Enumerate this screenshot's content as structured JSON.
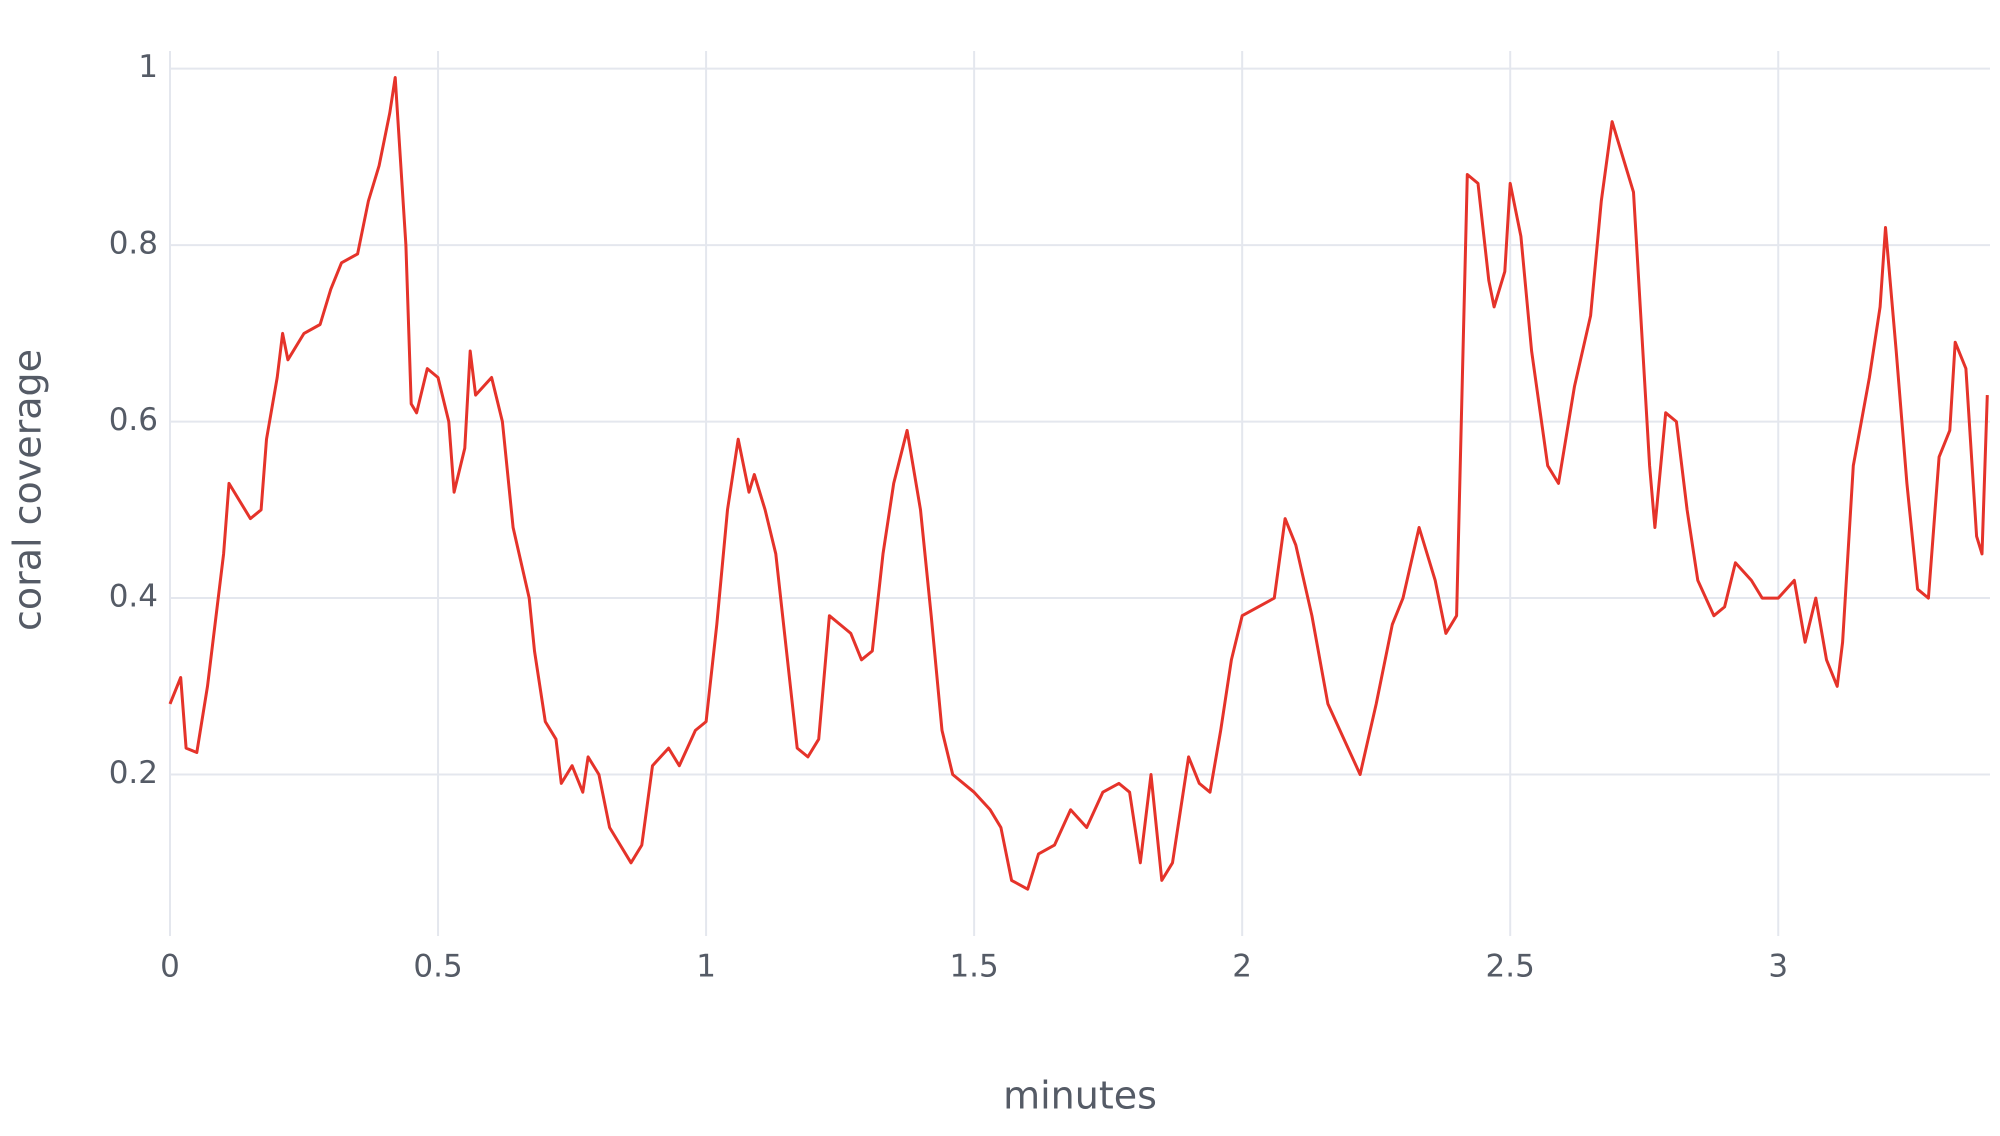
{
  "chart_data": {
    "type": "line",
    "xlabel": "minutes",
    "ylabel": "coral coverage",
    "xlim": [
      0,
      3.395
    ],
    "ylim": [
      0.017,
      1.02
    ],
    "xticks": [
      0,
      0.5,
      1,
      1.5,
      2,
      2.5,
      3
    ],
    "yticks": [
      0.2,
      0.4,
      0.6,
      0.8,
      1
    ],
    "grid": true,
    "series": [
      {
        "color": "#e5332a",
        "x": [
          0,
          0.02,
          0.03,
          0.05,
          0.07,
          0.1,
          0.11,
          0.13,
          0.15,
          0.17,
          0.18,
          0.2,
          0.21,
          0.22,
          0.25,
          0.28,
          0.3,
          0.32,
          0.35,
          0.37,
          0.39,
          0.41,
          0.42,
          0.44,
          0.45,
          0.46,
          0.48,
          0.5,
          0.52,
          0.53,
          0.55,
          0.56,
          0.57,
          0.6,
          0.62,
          0.64,
          0.67,
          0.68,
          0.7,
          0.72,
          0.73,
          0.75,
          0.77,
          0.78,
          0.8,
          0.82,
          0.84,
          0.86,
          0.88,
          0.9,
          0.93,
          0.95,
          0.98,
          1.0,
          1.02,
          1.04,
          1.06,
          1.08,
          1.09,
          1.11,
          1.13,
          1.15,
          1.17,
          1.19,
          1.21,
          1.23,
          1.25,
          1.27,
          1.29,
          1.31,
          1.33,
          1.35,
          1.375,
          1.4,
          1.42,
          1.44,
          1.46,
          1.5,
          1.53,
          1.55,
          1.57,
          1.6,
          1.62,
          1.65,
          1.68,
          1.71,
          1.74,
          1.77,
          1.79,
          1.81,
          1.83,
          1.85,
          1.87,
          1.9,
          1.92,
          1.94,
          1.96,
          1.98,
          2.0,
          2.03,
          2.06,
          2.08,
          2.1,
          2.13,
          2.16,
          2.19,
          2.22,
          2.25,
          2.28,
          2.3,
          2.33,
          2.36,
          2.38,
          2.4,
          2.42,
          2.44,
          2.46,
          2.47,
          2.49,
          2.5,
          2.52,
          2.54,
          2.57,
          2.59,
          2.62,
          2.65,
          2.67,
          2.69,
          2.71,
          2.73,
          2.76,
          2.77,
          2.79,
          2.81,
          2.83,
          2.85,
          2.88,
          2.9,
          2.92,
          2.95,
          2.97,
          3.0,
          3.03,
          3.05,
          3.07,
          3.09,
          3.11,
          3.12,
          3.14,
          3.17,
          3.19,
          3.2,
          3.22,
          3.24,
          3.26,
          3.28,
          3.3,
          3.32,
          3.33,
          3.35,
          3.37,
          3.38,
          3.39
        ],
        "values": [
          0.28,
          0.31,
          0.23,
          0.225,
          0.3,
          0.45,
          0.53,
          0.51,
          0.49,
          0.5,
          0.58,
          0.65,
          0.7,
          0.67,
          0.7,
          0.71,
          0.75,
          0.78,
          0.79,
          0.85,
          0.89,
          0.95,
          0.99,
          0.8,
          0.62,
          0.61,
          0.66,
          0.65,
          0.6,
          0.52,
          0.57,
          0.68,
          0.63,
          0.65,
          0.6,
          0.48,
          0.4,
          0.34,
          0.26,
          0.24,
          0.19,
          0.21,
          0.18,
          0.22,
          0.2,
          0.14,
          0.12,
          0.1,
          0.12,
          0.21,
          0.23,
          0.21,
          0.25,
          0.26,
          0.37,
          0.5,
          0.58,
          0.52,
          0.54,
          0.5,
          0.45,
          0.34,
          0.23,
          0.22,
          0.24,
          0.38,
          0.37,
          0.36,
          0.33,
          0.34,
          0.45,
          0.53,
          0.59,
          0.5,
          0.38,
          0.25,
          0.2,
          0.18,
          0.16,
          0.14,
          0.08,
          0.07,
          0.11,
          0.12,
          0.16,
          0.14,
          0.18,
          0.19,
          0.18,
          0.1,
          0.2,
          0.08,
          0.1,
          0.22,
          0.19,
          0.18,
          0.25,
          0.33,
          0.38,
          0.39,
          0.4,
          0.49,
          0.46,
          0.38,
          0.28,
          0.24,
          0.2,
          0.28,
          0.37,
          0.4,
          0.48,
          0.42,
          0.36,
          0.38,
          0.88,
          0.87,
          0.76,
          0.73,
          0.77,
          0.87,
          0.81,
          0.68,
          0.55,
          0.53,
          0.64,
          0.72,
          0.85,
          0.94,
          0.9,
          0.86,
          0.55,
          0.48,
          0.61,
          0.6,
          0.5,
          0.42,
          0.38,
          0.39,
          0.44,
          0.42,
          0.4,
          0.4,
          0.42,
          0.35,
          0.4,
          0.33,
          0.3,
          0.35,
          0.55,
          0.65,
          0.73,
          0.82,
          0.68,
          0.53,
          0.41,
          0.4,
          0.56,
          0.59,
          0.69,
          0.66,
          0.47,
          0.45,
          0.63
        ]
      }
    ]
  }
}
